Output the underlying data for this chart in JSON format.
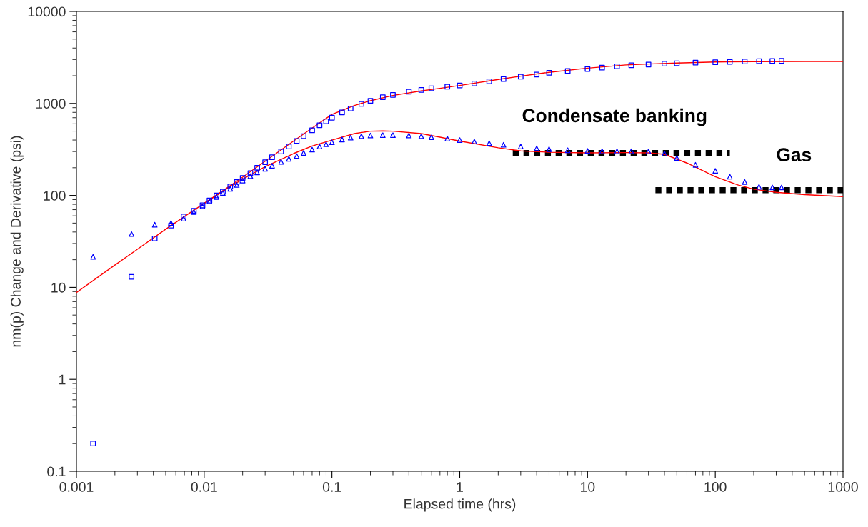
{
  "chart_data": {
    "type": "scatter",
    "xlabel": "Elapsed time (hrs)",
    "ylabel": "nm(p) Change and Derivative (psi)",
    "log": "xy",
    "xlim": [
      0.001,
      1000
    ],
    "ylim": [
      0.1,
      10000
    ],
    "xticks": [
      0.001,
      0.01,
      0.1,
      1,
      10,
      100,
      1000
    ],
    "yticks": [
      0.1,
      1,
      10,
      100,
      1000,
      10000
    ],
    "grid": false,
    "series": [
      {
        "type": "line",
        "color": "#ff0000",
        "line_style": "solid",
        "marker": "none",
        "x": [
          0.001,
          0.002,
          0.003,
          0.005,
          0.007,
          0.01,
          0.015,
          0.02,
          0.03,
          0.05,
          0.07,
          0.1,
          0.15,
          0.2,
          0.3,
          0.5,
          0.7,
          1,
          2,
          3,
          5,
          10,
          20,
          30,
          50,
          100,
          200,
          500,
          1000
        ],
        "values": [
          8.8,
          17.5,
          26,
          43,
          59,
          82,
          120,
          158,
          235,
          390,
          540,
          760,
          950,
          1070,
          1220,
          1370,
          1460,
          1570,
          1820,
          1980,
          2180,
          2420,
          2620,
          2680,
          2750,
          2820,
          2850,
          2860,
          2860
        ]
      },
      {
        "type": "line",
        "color": "#ff0000",
        "line_style": "solid",
        "marker": "none",
        "x": [
          0.01,
          0.015,
          0.02,
          0.03,
          0.05,
          0.07,
          0.1,
          0.15,
          0.2,
          0.25,
          0.3,
          0.5,
          0.7,
          1,
          2,
          3,
          5,
          10,
          20,
          30,
          40,
          60,
          100,
          150,
          200,
          300,
          500,
          1000
        ],
        "values": [
          82,
          118,
          150,
          205,
          285,
          345,
          400,
          470,
          500,
          503,
          500,
          470,
          430,
          390,
          330,
          305,
          295,
          290,
          292,
          290,
          280,
          225,
          160,
          130,
          117,
          108,
          102,
          97
        ]
      },
      {
        "type": "scatter",
        "color": "#0000ff",
        "marker": "square",
        "x": [
          0.00135,
          0.0027,
          0.0041,
          0.0055,
          0.0069,
          0.0083,
          0.0097,
          0.011,
          0.0125,
          0.014,
          0.016,
          0.018,
          0.02,
          0.023,
          0.026,
          0.03,
          0.034,
          0.04,
          0.046,
          0.053,
          0.06,
          0.07,
          0.08,
          0.09,
          0.1,
          0.12,
          0.14,
          0.17,
          0.2,
          0.25,
          0.3,
          0.4,
          0.5,
          0.6,
          0.8,
          1,
          1.3,
          1.7,
          2.2,
          3,
          4,
          5,
          7,
          10,
          13,
          17,
          22,
          30,
          40,
          50,
          70,
          100,
          130,
          170,
          220,
          280,
          330
        ],
        "values": [
          0.2,
          13,
          34,
          47,
          59,
          68,
          78,
          88,
          100,
          110,
          125,
          140,
          155,
          175,
          200,
          230,
          260,
          300,
          340,
          390,
          440,
          510,
          580,
          640,
          700,
          800,
          880,
          990,
          1070,
          1170,
          1240,
          1340,
          1400,
          1460,
          1520,
          1570,
          1650,
          1740,
          1840,
          1950,
          2060,
          2150,
          2250,
          2370,
          2450,
          2530,
          2600,
          2650,
          2700,
          2730,
          2780,
          2800,
          2830,
          2860,
          2880,
          2890,
          2900
        ]
      },
      {
        "type": "scatter",
        "color": "#0000ff",
        "marker": "triangle",
        "x": [
          0.00135,
          0.0027,
          0.0041,
          0.0055,
          0.0069,
          0.0083,
          0.0097,
          0.011,
          0.0125,
          0.014,
          0.016,
          0.018,
          0.02,
          0.023,
          0.026,
          0.03,
          0.034,
          0.04,
          0.046,
          0.053,
          0.06,
          0.07,
          0.08,
          0.09,
          0.1,
          0.12,
          0.14,
          0.17,
          0.2,
          0.25,
          0.3,
          0.4,
          0.5,
          0.6,
          0.8,
          1,
          1.3,
          1.7,
          2.2,
          3,
          4,
          5,
          7,
          10,
          13,
          17,
          22,
          30,
          40,
          50,
          70,
          100,
          130,
          170,
          220,
          280,
          330
        ],
        "values": [
          21.5,
          38,
          48,
          50,
          56,
          66,
          76,
          86,
          96,
          106,
          118,
          130,
          145,
          162,
          178,
          195,
          210,
          232,
          250,
          268,
          290,
          315,
          340,
          360,
          378,
          405,
          425,
          440,
          448,
          452,
          452,
          448,
          440,
          430,
          415,
          400,
          385,
          370,
          355,
          340,
          325,
          318,
          310,
          305,
          302,
          302,
          302,
          300,
          285,
          255,
          215,
          185,
          160,
          140,
          124,
          122,
          122
        ]
      },
      {
        "type": "line",
        "color": "#000000",
        "line_style": "dotted",
        "marker": "none",
        "x": [
          2.6,
          130
        ],
        "values": [
          290,
          290
        ]
      },
      {
        "type": "line",
        "color": "#000000",
        "line_style": "dotted",
        "marker": "none",
        "x": [
          34,
          1000
        ],
        "values": [
          114,
          114
        ]
      }
    ],
    "annotations": [
      "Condensate banking",
      "Gas"
    ]
  }
}
